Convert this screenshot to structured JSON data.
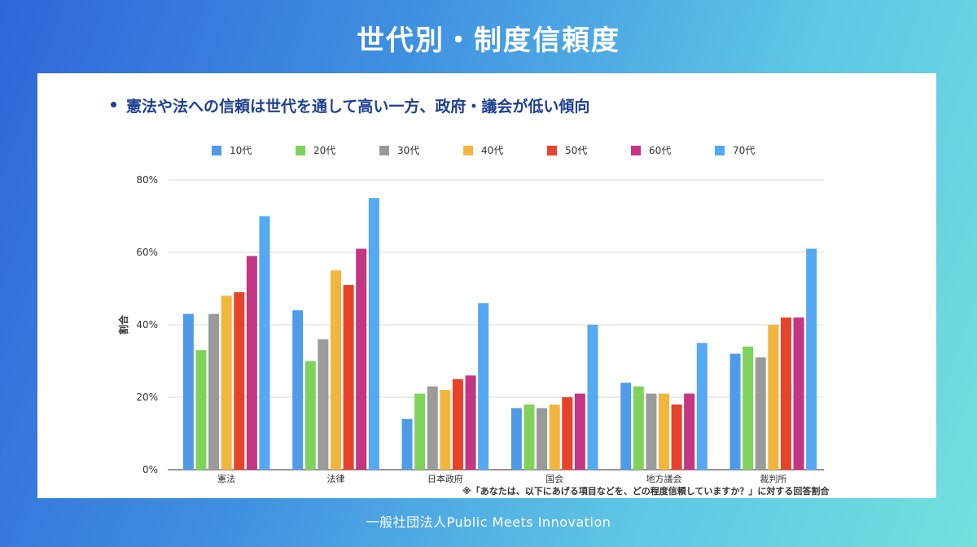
{
  "title": "世代別・制度信頼度",
  "bullet": "憲法や法への信頼は世代を通して高い一方、政府・議会が低い傾向",
  "footnote": "※「あなたは、以下にあげる項目などを、どの程度信頼していますか？」に対する回答割合",
  "footer": "一般社団法人Public Meets Innovation",
  "chart_data": {
    "type": "bar",
    "title": "",
    "xlabel": "",
    "ylabel": "割合",
    "ylim": [
      0,
      80
    ],
    "yticks": [
      0,
      20,
      40,
      60,
      80
    ],
    "ytick_labels": [
      "0%",
      "20%",
      "40%",
      "60%",
      "80%"
    ],
    "grid": true,
    "legend_position": "top",
    "categories": [
      "憲法",
      "法律",
      "日本政府",
      "国会",
      "地方議会",
      "裁判所"
    ],
    "series": [
      {
        "name": "10代",
        "color": "#4f9be8",
        "values": [
          43,
          44,
          14,
          17,
          24,
          32
        ]
      },
      {
        "name": "20代",
        "color": "#7fd35a",
        "values": [
          33,
          30,
          21,
          18,
          23,
          34
        ]
      },
      {
        "name": "30代",
        "color": "#9a9a9a",
        "values": [
          43,
          36,
          23,
          17,
          21,
          31
        ]
      },
      {
        "name": "40代",
        "color": "#f2b63c",
        "values": [
          48,
          55,
          22,
          18,
          21,
          40
        ]
      },
      {
        "name": "50代",
        "color": "#e8432a",
        "values": [
          49,
          51,
          25,
          20,
          18,
          42
        ]
      },
      {
        "name": "60代",
        "color": "#c43583",
        "values": [
          59,
          61,
          26,
          21,
          21,
          42
        ]
      },
      {
        "name": "70代",
        "color": "#55a8f2",
        "values": [
          70,
          75,
          46,
          40,
          35,
          61
        ]
      }
    ]
  }
}
